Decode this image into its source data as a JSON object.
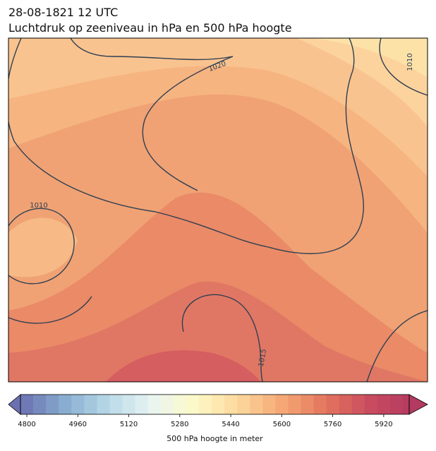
{
  "header": {
    "title": "28-08-1821 12 UTC",
    "subtitle": "Luchtdruk op zeeniveau in hPa en 500 hPa hoogte"
  },
  "isobar_labels": [
    1020,
    1010,
    1010,
    1015
  ],
  "colorbar": {
    "label": "500 hPa hoogte in meter",
    "lim": [
      4780,
      6000
    ],
    "level_step": 40,
    "ticks": [
      4800,
      4960,
      5120,
      5280,
      5440,
      5600,
      5760,
      5920
    ],
    "colormap": [
      "#6b70b0",
      "#87acd0",
      "#b8d9e8",
      "#e9f5f2",
      "#fdf9c6",
      "#fcd69a",
      "#f5a673",
      "#e2735e",
      "#c84a5f",
      "#b33a60"
    ]
  }
}
